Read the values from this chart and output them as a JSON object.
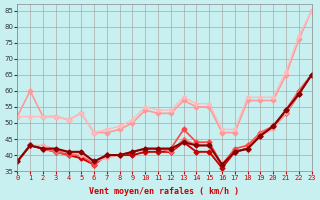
{
  "title": "",
  "xlabel": "Vent moyen/en rafales ( km/h )",
  "ylabel": "",
  "background_color": "#c8f0f0",
  "grid_color": "#aaaaaa",
  "xlim": [
    0,
    23
  ],
  "ylim": [
    35,
    87
  ],
  "yticks": [
    35,
    40,
    45,
    50,
    55,
    60,
    65,
    70,
    75,
    80,
    85
  ],
  "xticks": [
    0,
    1,
    2,
    3,
    4,
    5,
    6,
    7,
    8,
    9,
    10,
    11,
    12,
    13,
    14,
    15,
    16,
    17,
    18,
    19,
    20,
    21,
    22,
    23
  ],
  "lines": [
    {
      "x": [
        0,
        1,
        2,
        3,
        4,
        5,
        6,
        7,
        8,
        9,
        10,
        11,
        12,
        13,
        14,
        15,
        16,
        17,
        18,
        19,
        20,
        21,
        22,
        23
      ],
      "y": [
        52,
        60,
        52,
        52,
        51,
        53,
        47,
        47,
        48,
        50,
        54,
        53,
        53,
        57,
        55,
        55,
        47,
        47,
        57,
        57,
        57,
        65,
        76,
        85
      ],
      "color": "#ff9999",
      "lw": 1.2,
      "marker": "D",
      "ms": 2.5
    },
    {
      "x": [
        0,
        1,
        2,
        3,
        4,
        5,
        6,
        7,
        8,
        9,
        10,
        11,
        12,
        13,
        14,
        15,
        16,
        17,
        18,
        19,
        20,
        21,
        22,
        23
      ],
      "y": [
        38,
        43,
        42,
        41,
        40,
        39,
        37,
        40,
        40,
        40,
        41,
        41,
        41,
        44,
        41,
        41,
        36,
        41,
        42,
        46,
        49,
        53,
        59,
        65
      ],
      "color": "#cc0000",
      "lw": 1.4,
      "marker": "D",
      "ms": 2.5
    },
    {
      "x": [
        0,
        1,
        2,
        3,
        4,
        5,
        6,
        7,
        8,
        9,
        10,
        11,
        12,
        13,
        14,
        15,
        16,
        17,
        18,
        19,
        20,
        21,
        22,
        23
      ],
      "y": [
        38,
        43,
        42,
        41,
        40,
        40,
        37,
        40,
        40,
        41,
        42,
        42,
        42,
        48,
        44,
        44,
        37,
        42,
        43,
        47,
        49,
        54,
        60,
        65
      ],
      "color": "#ff4444",
      "lw": 1.2,
      "marker": "D",
      "ms": 2.5
    },
    {
      "x": [
        0,
        1,
        2,
        3,
        4,
        5,
        6,
        7,
        8,
        9,
        10,
        11,
        12,
        13,
        14,
        15,
        16,
        17,
        18,
        19,
        20,
        21,
        22,
        23
      ],
      "y": [
        38,
        43,
        42,
        41,
        41,
        40,
        38,
        40,
        40,
        41,
        42,
        42,
        41,
        45,
        43,
        43,
        37,
        41,
        42,
        47,
        49,
        54,
        60,
        65
      ],
      "color": "#ff6666",
      "lw": 1.1,
      "marker": "D",
      "ms": 2.0
    },
    {
      "x": [
        0,
        1,
        2,
        3,
        4,
        5,
        6,
        7,
        8,
        9,
        10,
        11,
        12,
        13,
        14,
        15,
        16,
        17,
        18,
        19,
        20,
        21,
        22,
        23
      ],
      "y": [
        38,
        43,
        43,
        42,
        41,
        40,
        38,
        39,
        40,
        41,
        42,
        42,
        42,
        44,
        43,
        43,
        37,
        41,
        42,
        46,
        48,
        53,
        59,
        65
      ],
      "color": "#ffaaaa",
      "lw": 1.0,
      "marker": "D",
      "ms": 2.0
    },
    {
      "x": [
        0,
        1,
        2,
        3,
        4,
        5,
        6,
        7,
        8,
        9,
        10,
        11,
        12,
        13,
        14,
        15,
        16,
        17,
        18,
        19,
        20,
        21,
        22,
        23
      ],
      "y": [
        52,
        52,
        52,
        52,
        51,
        53,
        47,
        48,
        49,
        51,
        55,
        54,
        54,
        58,
        56,
        56,
        48,
        48,
        58,
        58,
        58,
        66,
        77,
        85
      ],
      "color": "#ffbbbb",
      "lw": 1.0,
      "marker": "D",
      "ms": 2.0
    },
    {
      "x": [
        0,
        1,
        2,
        3,
        4,
        5,
        6,
        7,
        8,
        9,
        10,
        11,
        12,
        13,
        14,
        15,
        16,
        17,
        18,
        19,
        20,
        21,
        22,
        23
      ],
      "y": [
        38,
        43,
        42,
        42,
        41,
        41,
        38,
        40,
        40,
        41,
        42,
        42,
        42,
        44,
        43,
        43,
        37,
        41,
        42,
        46,
        49,
        54,
        59,
        65
      ],
      "color": "#880000",
      "lw": 1.5,
      "marker": "D",
      "ms": 2.5
    }
  ]
}
